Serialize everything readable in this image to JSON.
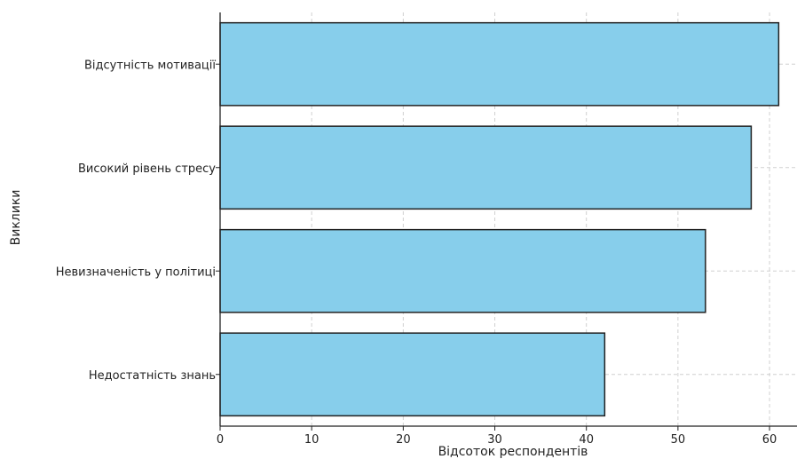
{
  "chart_data": {
    "type": "bar",
    "orientation": "horizontal",
    "categories": [
      "Відсутність мотивації",
      "Високий рівень стресу",
      "Невизначеність у політиці",
      "Недостатність знань"
    ],
    "values": [
      61,
      58,
      53,
      42
    ],
    "xlabel": "Відсоток респондентів",
    "ylabel": "Виклики",
    "xlim": [
      0,
      63
    ],
    "xticks": [
      0,
      10,
      20,
      30,
      40,
      50,
      60
    ],
    "grid": true,
    "colors": {
      "bar": "#87ceeb",
      "edge": "#222222"
    }
  }
}
